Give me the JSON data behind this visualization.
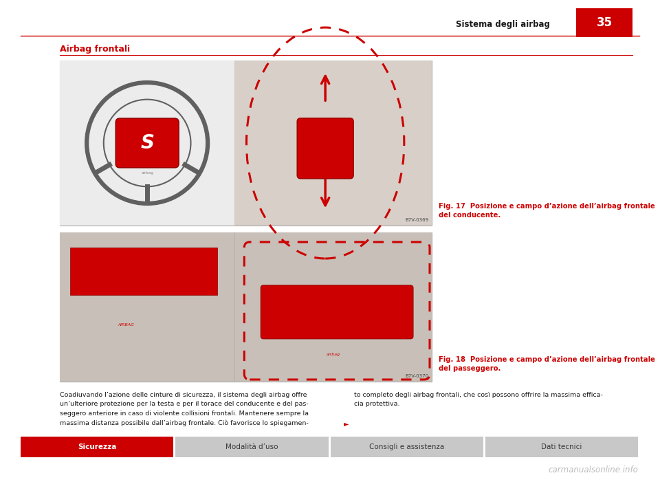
{
  "page_width": 9.6,
  "page_height": 7.01,
  "dpi": 100,
  "bg_color": "#ffffff",
  "header_text": "Sistema degli airbag",
  "header_page_num": "35",
  "header_text_color": "#1a1a1a",
  "header_page_bg": "#cc0000",
  "header_page_text_color": "#ffffff",
  "header_line_color": "#cc0000",
  "section_title": "Airbag frontali",
  "section_title_color": "#cc0000",
  "section_line_color": "#cc0000",
  "fig17_caption": "Fig. 17  Posizione e campo d’azione dell’airbag frontale\ndel conducente.",
  "fig18_caption": "Fig. 18  Posizione e campo d’azione dell’airbag frontale\ndel passeggero.",
  "caption_color": "#cc0000",
  "body_col1_lines": [
    "Coadiuvando l’azione delle cinture di sicurezza, il sistema degli airbag offre",
    "un’ulteriore protezione per la testa e per il torace del conducente e del pas-",
    "seggero anteriore in caso di violente collisioni frontali. Mantenere sempre la",
    "massima distanza possibile dall’airbag frontale. Ciò favorisce lo spiegamen-"
  ],
  "body_col2_lines": [
    "to completo degli airbag frontali, che così possono offrire la massima effica-",
    "cia protettiva."
  ],
  "arrow_indicator": "►",
  "footer_tabs": [
    "Sicurezza",
    "Modalità d’uso",
    "Consigli e assistenza",
    "Dati tecnici"
  ],
  "footer_active_idx": 0,
  "footer_active_bg": "#cc0000",
  "footer_active_text_color": "#ffffff",
  "footer_inactive_bg": "#c8c8c8",
  "footer_inactive_text_color": "#3a3a3a",
  "watermark_text": "carmanualsonline.info",
  "watermark_color": "#b0b0b0",
  "red": "#cc0000",
  "dark_red": "#990000",
  "img_border_color": "#aaaaaa",
  "img1_label": "B7V-0369",
  "img2_label": "B7V-0370"
}
